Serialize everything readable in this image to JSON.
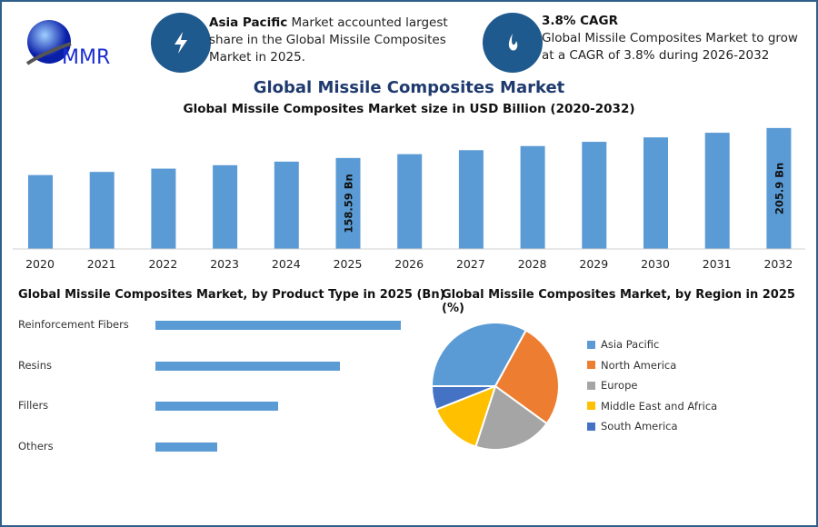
{
  "logo": {
    "text": "MMR"
  },
  "info1": {
    "icon": "lightning-icon",
    "bold": "Asia Pacific",
    "text": " Market accounted largest share in the Global Missile Composites Market in 2025."
  },
  "info2": {
    "icon": "flame-icon",
    "bold": "3.8% CAGR",
    "text": "Global Missile Composites Market to grow at a CAGR of 3.8% during 2026-2032"
  },
  "title": "Global Missile Composites Market",
  "colors": {
    "bar": "#5b9bd5",
    "heading": "#1f3a6e",
    "circle": "#1f5a8e"
  },
  "chart_data": [
    {
      "type": "bar",
      "title": "Global Missile Composites Market size in USD Billion (2020-2032)",
      "categories": [
        "2020",
        "2021",
        "2022",
        "2023",
        "2024",
        "2025",
        "2026",
        "2027",
        "2028",
        "2029",
        "2030",
        "2031",
        "2032"
      ],
      "values": [
        131.6,
        136.6,
        141.8,
        147.2,
        152.8,
        158.59,
        164.6,
        170.9,
        177.4,
        184.1,
        191.1,
        198.4,
        205.9
      ],
      "data_labels": {
        "2025": "158.59 Bn",
        "2032": "205.9 Bn"
      },
      "ylim": [
        15,
        210
      ],
      "grid": false
    },
    {
      "type": "bar",
      "orientation": "horizontal",
      "title": "Global Missile Composites Market, by Product Type in 2025 (Bn)",
      "categories": [
        "Reinforcement Fibers",
        "Resins",
        "Fillers",
        "Others"
      ],
      "values": [
        4,
        3,
        2,
        1
      ],
      "xlim": [
        0,
        4
      ]
    },
    {
      "type": "pie",
      "title": "Global Missile Composites Market, by Region in 2025 (%)",
      "categories": [
        "Asia Pacific",
        "North America",
        "Europe",
        "Middle East and Africa",
        "South America"
      ],
      "values": [
        33,
        27,
        20,
        14,
        6
      ],
      "colors": [
        "#5b9bd5",
        "#ed7d31",
        "#a5a5a5",
        "#ffc000",
        "#4472c4"
      ],
      "legend": "right"
    }
  ]
}
